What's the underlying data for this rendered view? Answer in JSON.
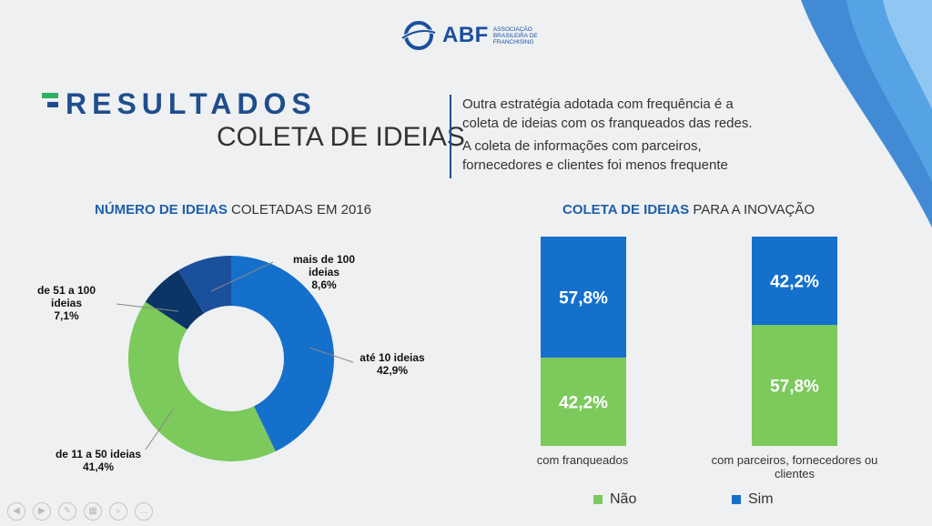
{
  "logo": {
    "brand": "ABF",
    "subtitle": "ASSOCIAÇÃO BRASILEIRA DE FRANCHISING"
  },
  "heading": {
    "title": "RESULTADOS",
    "subtitle": "COLETA DE IDEIAS"
  },
  "intro": {
    "p1": "Outra estratégia adotada com frequência é a coleta de ideias com os franqueados das redes.",
    "p2": "A coleta de informações com parceiros, fornecedores e clientes foi menos frequente"
  },
  "colors": {
    "dark_blue": "#0c3566",
    "mid_blue": "#1a4f9c",
    "blue": "#1570cc",
    "green": "#7cc95c"
  },
  "chart_data": [
    {
      "type": "pie",
      "title_bold": "NÚMERO DE IDEIAS",
      "title_rest": " COLETADAS EM 2016",
      "slices": [
        {
          "name": "até 10 ideias",
          "value": 42.9,
          "value_label": "42,9%",
          "color": "#1570cc"
        },
        {
          "name": "de 11 a 50 ideias",
          "value": 41.4,
          "value_label": "41,4%",
          "color": "#7cc95c"
        },
        {
          "name": "de 51 a 100 ideias",
          "value": 7.1,
          "value_label": "7,1%",
          "color": "#0c3566"
        },
        {
          "name": "mais de 100 ideias",
          "value": 8.6,
          "value_label": "8,6%",
          "color": "#1a4f9c"
        }
      ]
    },
    {
      "type": "bar",
      "stacked": true,
      "title_bold": "COLETA DE IDEIAS",
      "title_rest": " PARA A INOVAÇÃO",
      "categories": [
        "com franqueados",
        "com parceiros, fornecedores ou clientes"
      ],
      "series": [
        {
          "name": "Não",
          "values": [
            42.2,
            57.8
          ],
          "labels": [
            "42,2%",
            "57,8%"
          ],
          "color": "#7cc95c"
        },
        {
          "name": "Sim",
          "values": [
            57.8,
            42.2
          ],
          "labels": [
            "57,8%",
            "42,2%"
          ],
          "color": "#1570cc"
        }
      ],
      "ylim": [
        0,
        100
      ],
      "legend": "bottom"
    }
  ]
}
